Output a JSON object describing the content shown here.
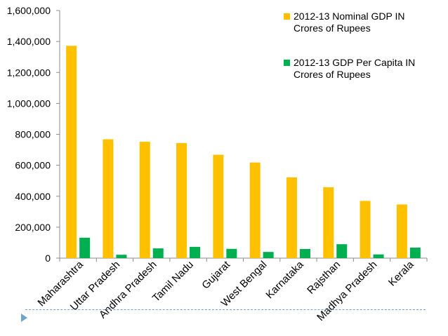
{
  "chart_data": {
    "type": "bar",
    "title": "",
    "xlabel": "",
    "ylabel": "",
    "ylim": [
      0,
      1600000
    ],
    "yticks": [
      0,
      200000,
      400000,
      600000,
      800000,
      1000000,
      1200000,
      1400000,
      1600000
    ],
    "ytick_labels": [
      "0",
      "200,000",
      "400,000",
      "600,000",
      "800,000",
      "1,000,000",
      "1,200,000",
      "1,400,000",
      "1,600,000"
    ],
    "grid": false,
    "legend_position": "top-right",
    "categories": [
      "Maharashtra",
      "Uttar Pradesh",
      "Andhra Pradesh",
      "Tamil Nadu",
      "Gujarat",
      "West Bengal",
      "Karnataka",
      "Rajsthan",
      "Madhya Pradesh",
      "Kerala"
    ],
    "series": [
      {
        "name": "2012-13 Nominal GDP IN Crores of Rupees",
        "legend_lines": [
          "2012-13 Nominal GDP IN",
          "Crores of Rupees"
        ],
        "color": "#ffc000",
        "values": [
          1372000,
          768000,
          752000,
          744000,
          668000,
          618000,
          522000,
          458000,
          370000,
          347000
        ]
      },
      {
        "name": "2012-13  GDP Per Capita IN Crores of Rupees",
        "legend_lines": [
          "2012-13  GDP Per Capita IN",
          "Crores of Rupees"
        ],
        "color": "#00b050",
        "values": [
          132000,
          22000,
          63000,
          73000,
          60000,
          40000,
          59000,
          90000,
          24000,
          68000
        ]
      }
    ]
  }
}
